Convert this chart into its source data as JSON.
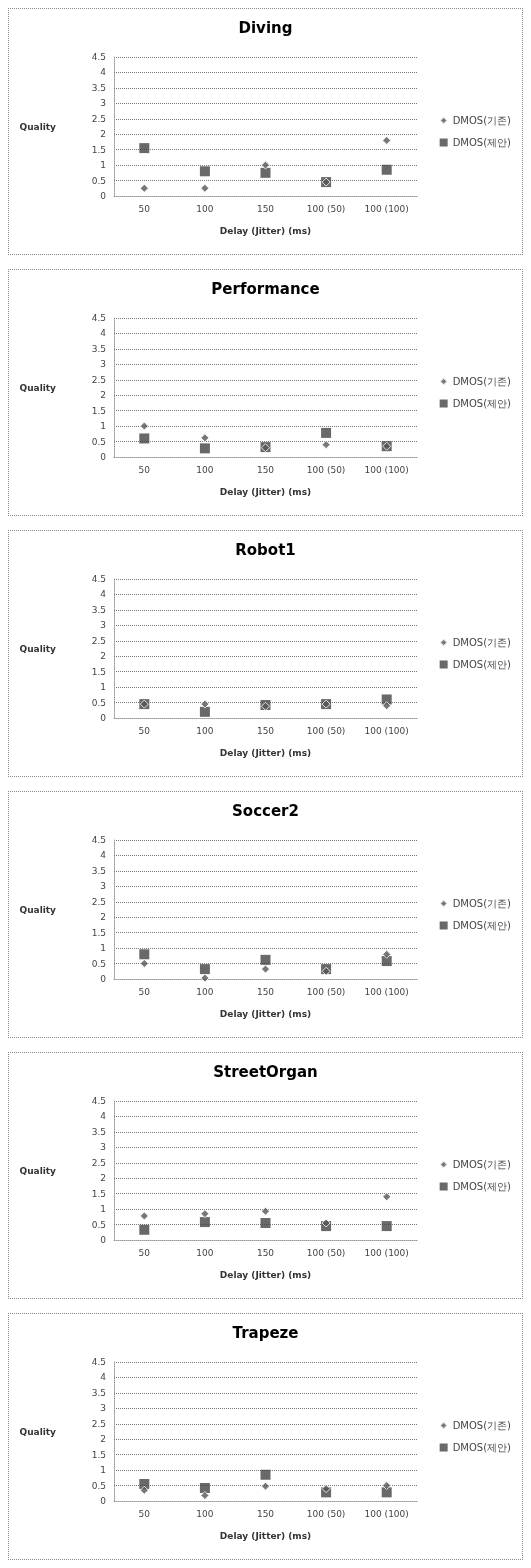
{
  "chart_data": [
    {
      "type": "scatter",
      "title": "Diving",
      "xlabel": "Delay (Jitter) (ms)",
      "ylabel": "Quality",
      "categories": [
        "50",
        "100",
        "150",
        "100 (50)",
        "100 (100)"
      ],
      "ylim": [
        0,
        4.5
      ],
      "yticks": [
        0,
        0.5,
        1,
        1.5,
        2,
        2.5,
        3,
        3.5,
        4,
        4.5
      ],
      "grid": "y",
      "legend": "right",
      "series": [
        {
          "name": "DMOS(기존)",
          "color": "#555555",
          "marker": "diamond",
          "values": [
            0.25,
            0.25,
            1.0,
            0.45,
            1.8
          ]
        },
        {
          "name": "DMOS(제안)",
          "color": "#444444",
          "marker": "square",
          "values": [
            1.55,
            0.8,
            0.75,
            0.45,
            0.85
          ]
        }
      ]
    },
    {
      "type": "scatter",
      "title": "Performance",
      "xlabel": "Delay (Jitter) (ms)",
      "ylabel": "Quality",
      "categories": [
        "50",
        "100",
        "150",
        "100 (50)",
        "100 (100)"
      ],
      "ylim": [
        0,
        4.5
      ],
      "yticks": [
        0,
        0.5,
        1,
        1.5,
        2,
        2.5,
        3,
        3.5,
        4,
        4.5
      ],
      "grid": "y",
      "legend": "right",
      "series": [
        {
          "name": "DMOS(기존)",
          "color": "#555555",
          "marker": "diamond",
          "values": [
            1.0,
            0.62,
            0.3,
            0.4,
            0.35
          ]
        },
        {
          "name": "DMOS(제안)",
          "color": "#444444",
          "marker": "square",
          "values": [
            0.6,
            0.28,
            0.32,
            0.78,
            0.35
          ]
        }
      ]
    },
    {
      "type": "scatter",
      "title": "Robot1",
      "xlabel": "Delay (Jitter) (ms)",
      "ylabel": "Quality",
      "categories": [
        "50",
        "100",
        "150",
        "100 (50)",
        "100 (100)"
      ],
      "ylim": [
        0,
        4.5
      ],
      "yticks": [
        0,
        0.5,
        1,
        1.5,
        2,
        2.5,
        3,
        3.5,
        4,
        4.5
      ],
      "grid": "y",
      "legend": "right",
      "series": [
        {
          "name": "DMOS(기존)",
          "color": "#555555",
          "marker": "diamond",
          "values": [
            0.45,
            0.45,
            0.38,
            0.45,
            0.4
          ]
        },
        {
          "name": "DMOS(제안)",
          "color": "#444444",
          "marker": "square",
          "values": [
            0.45,
            0.2,
            0.42,
            0.45,
            0.6
          ]
        }
      ]
    },
    {
      "type": "scatter",
      "title": "Soccer2",
      "xlabel": "Delay (Jitter) (ms)",
      "ylabel": "Quality",
      "categories": [
        "50",
        "100",
        "150",
        "100 (50)",
        "100 (100)"
      ],
      "ylim": [
        0,
        4.5
      ],
      "yticks": [
        0,
        0.5,
        1,
        1.5,
        2,
        2.5,
        3,
        3.5,
        4,
        4.5
      ],
      "grid": "y",
      "legend": "right",
      "series": [
        {
          "name": "DMOS(기존)",
          "color": "#555555",
          "marker": "diamond",
          "values": [
            0.5,
            0.03,
            0.32,
            0.25,
            0.8
          ]
        },
        {
          "name": "DMOS(제안)",
          "color": "#444444",
          "marker": "square",
          "values": [
            0.8,
            0.32,
            0.62,
            0.32,
            0.58
          ]
        }
      ]
    },
    {
      "type": "scatter",
      "title": "StreetOrgan",
      "xlabel": "Delay (Jitter) (ms)",
      "ylabel": "Quality",
      "categories": [
        "50",
        "100",
        "150",
        "100 (50)",
        "100 (100)"
      ],
      "ylim": [
        0,
        4.5
      ],
      "yticks": [
        0,
        0.5,
        1,
        1.5,
        2,
        2.5,
        3,
        3.5,
        4,
        4.5
      ],
      "grid": "y",
      "legend": "right",
      "series": [
        {
          "name": "DMOS(기존)",
          "color": "#555555",
          "marker": "diamond",
          "values": [
            0.78,
            0.85,
            0.93,
            0.55,
            1.4
          ]
        },
        {
          "name": "DMOS(제안)",
          "color": "#444444",
          "marker": "square",
          "values": [
            0.33,
            0.58,
            0.55,
            0.45,
            0.45
          ]
        }
      ]
    },
    {
      "type": "scatter",
      "title": "Trapeze",
      "xlabel": "Delay (Jitter) (ms)",
      "ylabel": "Quality",
      "categories": [
        "50",
        "100",
        "150",
        "100 (50)",
        "100 (100)"
      ],
      "ylim": [
        0,
        4.5
      ],
      "yticks": [
        0,
        0.5,
        1,
        1.5,
        2,
        2.5,
        3,
        3.5,
        4,
        4.5
      ],
      "grid": "y",
      "legend": "right",
      "series": [
        {
          "name": "DMOS(기존)",
          "color": "#555555",
          "marker": "diamond",
          "values": [
            0.35,
            0.18,
            0.48,
            0.4,
            0.5
          ]
        },
        {
          "name": "DMOS(제안)",
          "color": "#444444",
          "marker": "square",
          "values": [
            0.55,
            0.42,
            0.85,
            0.28,
            0.28
          ]
        }
      ]
    }
  ]
}
